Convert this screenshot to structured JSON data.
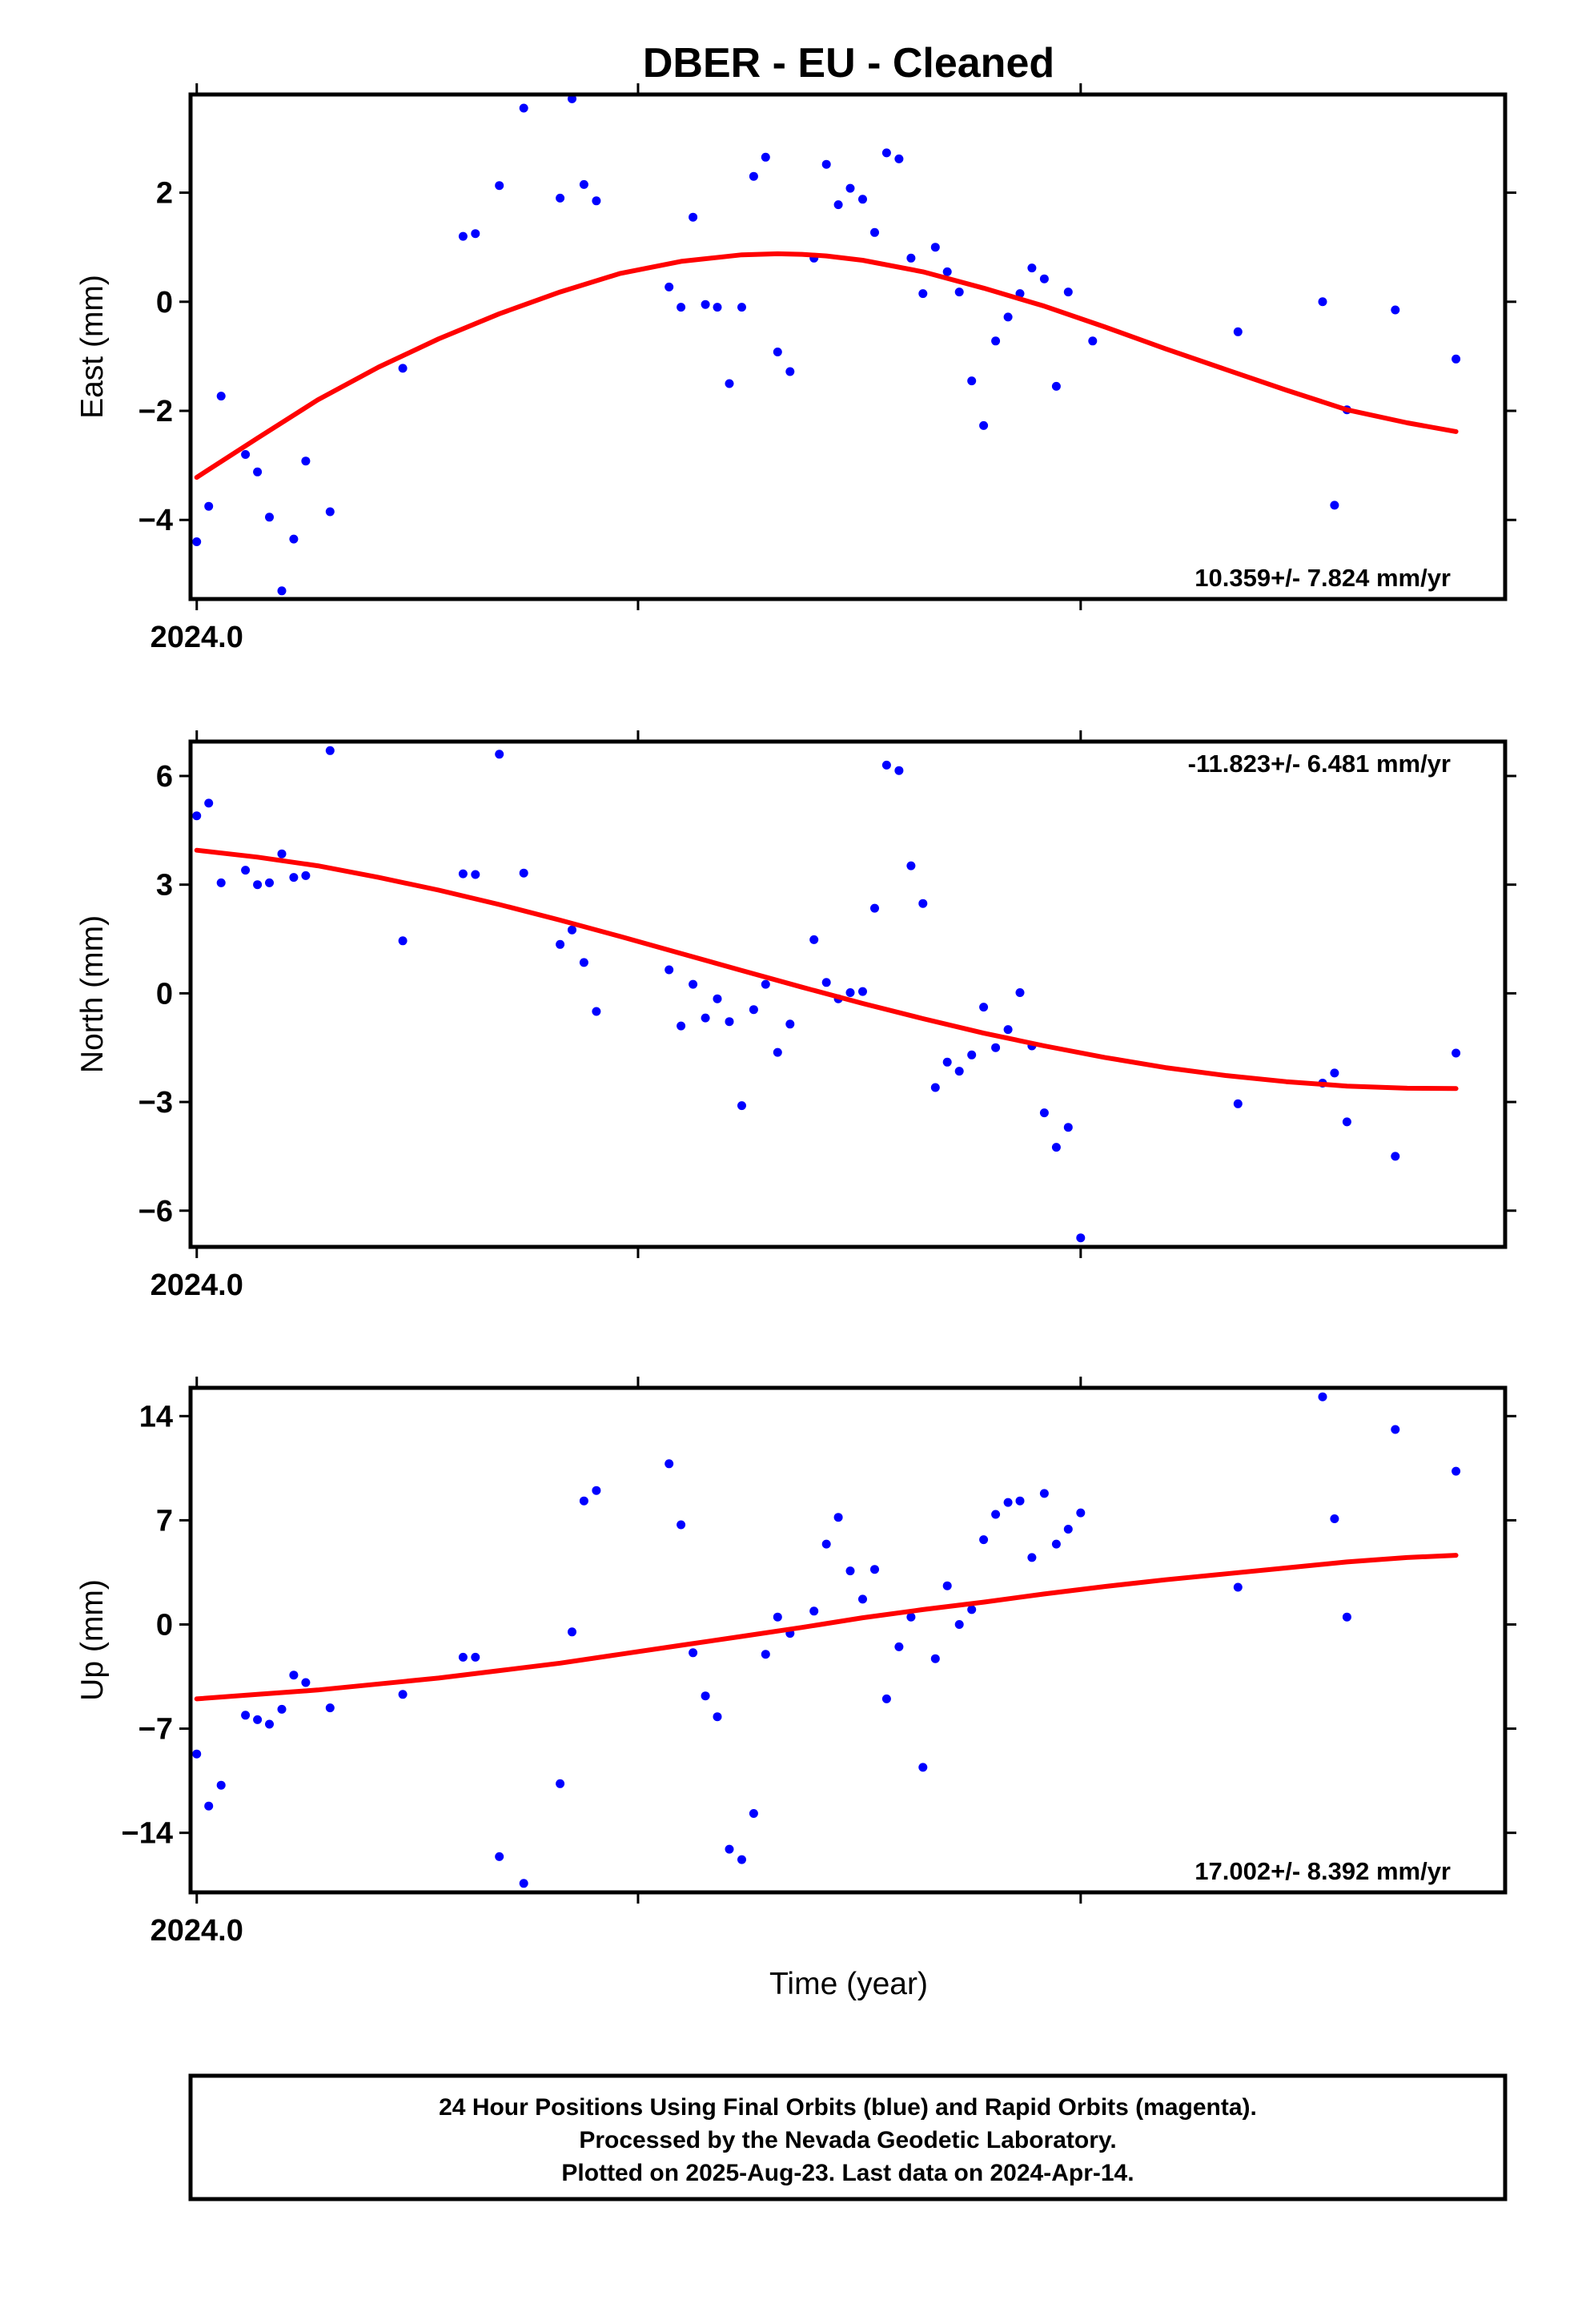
{
  "title": "DBER  - EU - Cleaned",
  "x_axis_label": "Time (year)",
  "x_tick_label": "2024.0",
  "colors": {
    "data_points": "#0000ff",
    "fit_line": "#ff0000",
    "frame": "#000000"
  },
  "footer": {
    "lines": [
      "24 Hour Positions Using Final Orbits (blue) and Rapid Orbits (magenta).",
      "Processed by the Nevada Geodetic Laboratory.",
      "Plotted on 2025-Aug-23. Last data on 2024-Apr-14."
    ]
  },
  "chart_data": [
    {
      "type": "scatter",
      "component": "East",
      "ylabel": "East (mm)",
      "rate_label": "10.359+/- 7.824 mm/yr",
      "xlim": [
        2023.9986,
        2024.2953
      ],
      "ylim": [
        -5.45,
        3.8
      ],
      "yticks": [
        2,
        0,
        -2,
        -4
      ],
      "ytick_labels": [
        "2",
        "0",
        "−2",
        "−4"
      ],
      "points": [
        [
          2024.0,
          -4.4
        ],
        [
          2024.0027,
          -3.75
        ],
        [
          2024.0055,
          -1.73
        ],
        [
          2024.011,
          -2.8
        ],
        [
          2024.0137,
          -3.12
        ],
        [
          2024.0164,
          -3.95
        ],
        [
          2024.0192,
          -5.3
        ],
        [
          2024.0219,
          -4.35
        ],
        [
          2024.0246,
          -2.92
        ],
        [
          2024.0301,
          -3.85
        ],
        [
          2024.0465,
          -1.22
        ],
        [
          2024.0601,
          1.2
        ],
        [
          2024.0629,
          1.25
        ],
        [
          2024.0683,
          2.13
        ],
        [
          2024.0738,
          3.55
        ],
        [
          2024.082,
          1.9
        ],
        [
          2024.0847,
          3.72
        ],
        [
          2024.0874,
          2.15
        ],
        [
          2024.0902,
          1.85
        ],
        [
          2024.1066,
          0.27
        ],
        [
          2024.1093,
          -0.1
        ],
        [
          2024.112,
          1.55
        ],
        [
          2024.1148,
          -0.05
        ],
        [
          2024.1175,
          -0.1
        ],
        [
          2024.1202,
          -1.5
        ],
        [
          2024.123,
          -0.1
        ],
        [
          2024.1257,
          2.3
        ],
        [
          2024.1284,
          2.65
        ],
        [
          2024.1311,
          -0.92
        ],
        [
          2024.1339,
          -1.28
        ],
        [
          2024.1393,
          0.8
        ],
        [
          2024.1421,
          2.52
        ],
        [
          2024.1448,
          1.78
        ],
        [
          2024.1475,
          2.08
        ],
        [
          2024.1503,
          1.88
        ],
        [
          2024.153,
          1.27
        ],
        [
          2024.1557,
          2.73
        ],
        [
          2024.1585,
          2.62
        ],
        [
          2024.1612,
          0.8
        ],
        [
          2024.1639,
          0.15
        ],
        [
          2024.1667,
          1.0
        ],
        [
          2024.1694,
          0.55
        ],
        [
          2024.1721,
          0.18
        ],
        [
          2024.1749,
          -1.45
        ],
        [
          2024.1776,
          -2.27
        ],
        [
          2024.1803,
          -0.72
        ],
        [
          2024.1831,
          -0.28
        ],
        [
          2024.1858,
          0.15
        ],
        [
          2024.1885,
          0.62
        ],
        [
          2024.1913,
          0.42
        ],
        [
          2024.194,
          -1.55
        ],
        [
          2024.1967,
          0.18
        ],
        [
          2024.2022,
          -0.72
        ],
        [
          2024.235,
          -0.55
        ],
        [
          2024.2541,
          0.0
        ],
        [
          2024.2568,
          -3.73
        ],
        [
          2024.2596,
          -1.98
        ],
        [
          2024.2705,
          -0.15
        ],
        [
          2024.2842,
          -1.05
        ]
      ],
      "fit": {
        "x": [
          2024.0,
          2024.0137,
          2024.0273,
          2024.041,
          2024.0546,
          2024.0683,
          2024.082,
          2024.0956,
          2024.1093,
          2024.123,
          2024.1311,
          2024.1366,
          2024.1421,
          2024.1503,
          2024.1639,
          2024.1776,
          2024.1913,
          2024.2049,
          2024.2186,
          2024.2322,
          2024.2459,
          2024.2596,
          2024.2732,
          2024.2842
        ],
        "y": [
          -3.22,
          -2.5,
          -1.8,
          -1.2,
          -0.68,
          -0.22,
          0.18,
          0.52,
          0.74,
          0.86,
          0.88,
          0.87,
          0.84,
          0.76,
          0.55,
          0.25,
          -0.08,
          -0.46,
          -0.86,
          -1.24,
          -1.62,
          -1.98,
          -2.22,
          -2.38
        ]
      }
    },
    {
      "type": "scatter",
      "component": "North",
      "ylabel": "North (mm)",
      "rate_label": "-11.823+/- 6.481 mm/yr",
      "xlim": [
        2023.9986,
        2024.2953
      ],
      "ylim": [
        -7.0,
        6.95
      ],
      "yticks": [
        6,
        3,
        0,
        -3,
        -6
      ],
      "ytick_labels": [
        "6",
        "3",
        "0",
        "−3",
        "−6"
      ],
      "points": [
        [
          2024.0,
          4.9
        ],
        [
          2024.0027,
          5.25
        ],
        [
          2024.0055,
          3.05
        ],
        [
          2024.011,
          3.4
        ],
        [
          2024.0137,
          3.0
        ],
        [
          2024.0164,
          3.05
        ],
        [
          2024.0192,
          3.85
        ],
        [
          2024.0219,
          3.2
        ],
        [
          2024.0246,
          3.25
        ],
        [
          2024.0301,
          6.7
        ],
        [
          2024.0465,
          1.45
        ],
        [
          2024.0601,
          3.3
        ],
        [
          2024.0629,
          3.28
        ],
        [
          2024.0683,
          6.6
        ],
        [
          2024.0738,
          3.32
        ],
        [
          2024.082,
          1.35
        ],
        [
          2024.0847,
          1.75
        ],
        [
          2024.0874,
          0.85
        ],
        [
          2024.0902,
          -0.5
        ],
        [
          2024.1066,
          0.65
        ],
        [
          2024.1093,
          -0.9
        ],
        [
          2024.112,
          0.25
        ],
        [
          2024.1148,
          -0.68
        ],
        [
          2024.1175,
          -0.15
        ],
        [
          2024.1202,
          -0.78
        ],
        [
          2024.123,
          -3.1
        ],
        [
          2024.1257,
          -0.45
        ],
        [
          2024.1284,
          0.25
        ],
        [
          2024.1311,
          -1.63
        ],
        [
          2024.1339,
          -0.85
        ],
        [
          2024.1393,
          1.48
        ],
        [
          2024.1421,
          0.3
        ],
        [
          2024.1448,
          -0.15
        ],
        [
          2024.1475,
          0.02
        ],
        [
          2024.1503,
          0.05
        ],
        [
          2024.153,
          2.35
        ],
        [
          2024.1557,
          6.3
        ],
        [
          2024.1585,
          6.15
        ],
        [
          2024.1612,
          3.52
        ],
        [
          2024.1639,
          2.48
        ],
        [
          2024.1667,
          -2.6
        ],
        [
          2024.1694,
          -1.9
        ],
        [
          2024.1721,
          -2.15
        ],
        [
          2024.1749,
          -1.7
        ],
        [
          2024.1776,
          -0.38
        ],
        [
          2024.1803,
          -1.5
        ],
        [
          2024.1831,
          -1.0
        ],
        [
          2024.1858,
          0.02
        ],
        [
          2024.1885,
          -1.45
        ],
        [
          2024.1913,
          -3.3
        ],
        [
          2024.194,
          -4.25
        ],
        [
          2024.1967,
          -3.7
        ],
        [
          2024.1995,
          -6.75
        ],
        [
          2024.235,
          -3.05
        ],
        [
          2024.2541,
          -2.48
        ],
        [
          2024.2568,
          -2.2
        ],
        [
          2024.2596,
          -3.55
        ],
        [
          2024.2705,
          -4.5
        ],
        [
          2024.2842,
          -1.65
        ]
      ],
      "fit": {
        "x": [
          2024.0,
          2024.0137,
          2024.0273,
          2024.041,
          2024.0546,
          2024.0683,
          2024.082,
          2024.0956,
          2024.1093,
          2024.123,
          2024.1366,
          2024.1503,
          2024.1639,
          2024.1776,
          2024.1913,
          2024.2049,
          2024.2186,
          2024.2322,
          2024.2459,
          2024.2596,
          2024.2732,
          2024.2842
        ],
        "y": [
          3.95,
          3.76,
          3.52,
          3.2,
          2.85,
          2.45,
          2.02,
          1.57,
          1.1,
          0.63,
          0.17,
          -0.28,
          -0.7,
          -1.1,
          -1.45,
          -1.77,
          -2.05,
          -2.27,
          -2.44,
          -2.56,
          -2.62,
          -2.63
        ]
      }
    },
    {
      "type": "scatter",
      "component": "Up",
      "ylabel": "Up (mm)",
      "rate_label": "17.002+/- 8.392 mm/yr",
      "xlim": [
        2023.9986,
        2024.2953
      ],
      "ylim": [
        -18.0,
        15.9
      ],
      "yticks": [
        14,
        7,
        0,
        -7,
        -14
      ],
      "ytick_labels": [
        "14",
        "7",
        "0",
        "−7",
        "−14"
      ],
      "points": [
        [
          2024.0,
          -8.7
        ],
        [
          2024.0027,
          -12.2
        ],
        [
          2024.0055,
          -10.8
        ],
        [
          2024.011,
          -6.1
        ],
        [
          2024.0137,
          -6.4
        ],
        [
          2024.0164,
          -6.7
        ],
        [
          2024.0192,
          -5.7
        ],
        [
          2024.0219,
          -3.4
        ],
        [
          2024.0246,
          -3.9
        ],
        [
          2024.0301,
          -5.6
        ],
        [
          2024.0465,
          -4.7
        ],
        [
          2024.0601,
          -2.2
        ],
        [
          2024.0629,
          -2.2
        ],
        [
          2024.0683,
          -15.6
        ],
        [
          2024.0738,
          -17.4
        ],
        [
          2024.082,
          -10.7
        ],
        [
          2024.0847,
          -0.5
        ],
        [
          2024.0874,
          8.3
        ],
        [
          2024.0902,
          9.0
        ],
        [
          2024.1066,
          10.8
        ],
        [
          2024.1093,
          6.7
        ],
        [
          2024.112,
          -1.9
        ],
        [
          2024.1148,
          -4.8
        ],
        [
          2024.1175,
          -6.2
        ],
        [
          2024.1202,
          -15.1
        ],
        [
          2024.123,
          -15.8
        ],
        [
          2024.1257,
          -12.7
        ],
        [
          2024.1284,
          -2.0
        ],
        [
          2024.1311,
          0.5
        ],
        [
          2024.1339,
          -0.6
        ],
        [
          2024.1393,
          0.9
        ],
        [
          2024.1421,
          5.4
        ],
        [
          2024.1448,
          7.2
        ],
        [
          2024.1475,
          3.6
        ],
        [
          2024.1503,
          1.7
        ],
        [
          2024.153,
          3.7
        ],
        [
          2024.1557,
          -5.0
        ],
        [
          2024.1585,
          -1.5
        ],
        [
          2024.1612,
          0.5
        ],
        [
          2024.1639,
          -9.6
        ],
        [
          2024.1667,
          -2.3
        ],
        [
          2024.1694,
          2.6
        ],
        [
          2024.1721,
          0.0
        ],
        [
          2024.1749,
          1.0
        ],
        [
          2024.1776,
          5.7
        ],
        [
          2024.1803,
          7.4
        ],
        [
          2024.1831,
          8.2
        ],
        [
          2024.1858,
          8.3
        ],
        [
          2024.1885,
          4.5
        ],
        [
          2024.1913,
          8.8
        ],
        [
          2024.194,
          5.4
        ],
        [
          2024.1967,
          6.4
        ],
        [
          2024.1995,
          7.5
        ],
        [
          2024.235,
          2.5
        ],
        [
          2024.2541,
          15.3
        ],
        [
          2024.2568,
          7.1
        ],
        [
          2024.2596,
          0.5
        ],
        [
          2024.2705,
          13.1
        ],
        [
          2024.2842,
          10.3
        ]
      ],
      "fit": {
        "x": [
          2024.0,
          2024.0137,
          2024.0273,
          2024.041,
          2024.0546,
          2024.0683,
          2024.082,
          2024.0956,
          2024.1093,
          2024.123,
          2024.1366,
          2024.1503,
          2024.1639,
          2024.1776,
          2024.1913,
          2024.2049,
          2024.2186,
          2024.2322,
          2024.2459,
          2024.2596,
          2024.2732,
          2024.2842
        ],
        "y": [
          -5.0,
          -4.7,
          -4.4,
          -4.0,
          -3.6,
          -3.1,
          -2.6,
          -2.0,
          -1.4,
          -0.8,
          -0.2,
          0.45,
          1.0,
          1.5,
          2.05,
          2.55,
          3.0,
          3.4,
          3.8,
          4.2,
          4.5,
          4.65
        ]
      }
    }
  ]
}
